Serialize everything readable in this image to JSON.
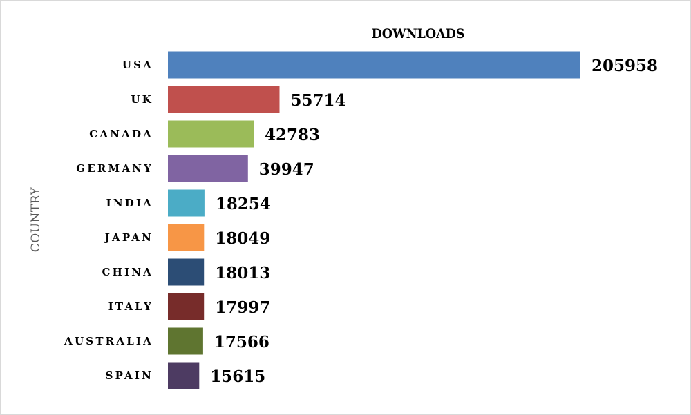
{
  "chart_data": {
    "type": "bar",
    "orientation": "horizontal",
    "title": "DOWNLOADS",
    "ylabel": "COUNTRY",
    "xlabel": "",
    "categories": [
      "USA",
      "UK",
      "CANADA",
      "GERMANY",
      "INDIA",
      "JAPAN",
      "CHINA",
      "ITALY",
      "AUSTRALIA",
      "SPAIN"
    ],
    "values": [
      205958,
      55714,
      42783,
      39947,
      18254,
      18049,
      18013,
      17997,
      17566,
      15615
    ],
    "value_labels": [
      "205958",
      "55714",
      "42783",
      "39947",
      "18254",
      "18049",
      "18013",
      "17997",
      "17566",
      "15615"
    ],
    "colors": [
      "#4f81bd",
      "#c0504d",
      "#9bbb59",
      "#8064a2",
      "#4bacc6",
      "#f79646",
      "#2c4d75",
      "#772c2a",
      "#5f7530",
      "#4d3b62"
    ],
    "xlim": [
      0,
      205958
    ],
    "grid": false,
    "legend": "none"
  }
}
